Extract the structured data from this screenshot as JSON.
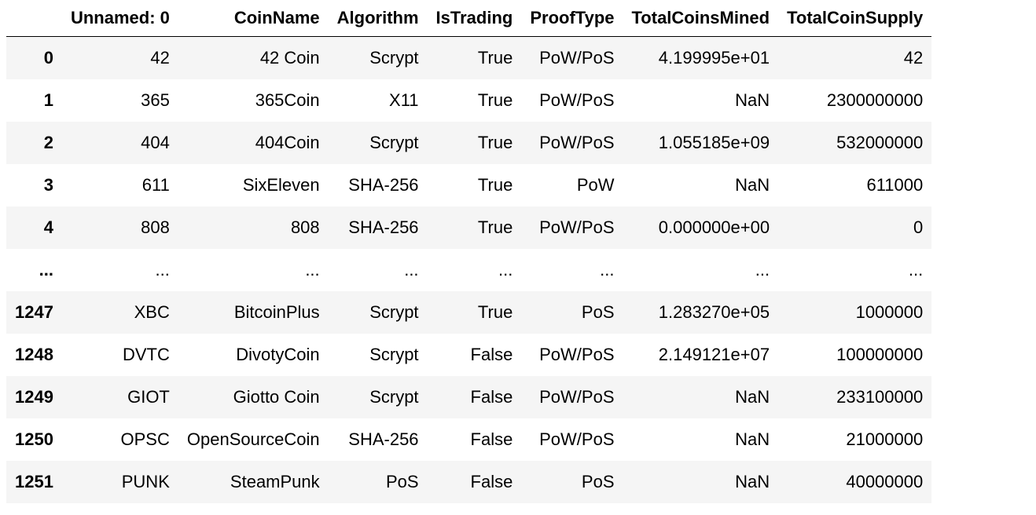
{
  "dataframe": {
    "columns": [
      "",
      "Unnamed: 0",
      "CoinName",
      "Algorithm",
      "IsTrading",
      "ProofType",
      "TotalCoinsMined",
      "TotalCoinSupply"
    ],
    "rows": [
      {
        "index": "0",
        "cells": [
          "42",
          "42 Coin",
          "Scrypt",
          "True",
          "PoW/PoS",
          "4.199995e+01",
          "42"
        ]
      },
      {
        "index": "1",
        "cells": [
          "365",
          "365Coin",
          "X11",
          "True",
          "PoW/PoS",
          "NaN",
          "2300000000"
        ]
      },
      {
        "index": "2",
        "cells": [
          "404",
          "404Coin",
          "Scrypt",
          "True",
          "PoW/PoS",
          "1.055185e+09",
          "532000000"
        ]
      },
      {
        "index": "3",
        "cells": [
          "611",
          "SixEleven",
          "SHA-256",
          "True",
          "PoW",
          "NaN",
          "611000"
        ]
      },
      {
        "index": "4",
        "cells": [
          "808",
          "808",
          "SHA-256",
          "True",
          "PoW/PoS",
          "0.000000e+00",
          "0"
        ]
      },
      {
        "index": "...",
        "cells": [
          "...",
          "...",
          "...",
          "...",
          "...",
          "...",
          "..."
        ]
      },
      {
        "index": "1247",
        "cells": [
          "XBC",
          "BitcoinPlus",
          "Scrypt",
          "True",
          "PoS",
          "1.283270e+05",
          "1000000"
        ]
      },
      {
        "index": "1248",
        "cells": [
          "DVTC",
          "DivotyCoin",
          "Scrypt",
          "False",
          "PoW/PoS",
          "2.149121e+07",
          "100000000"
        ]
      },
      {
        "index": "1249",
        "cells": [
          "GIOT",
          "Giotto Coin",
          "Scrypt",
          "False",
          "PoW/PoS",
          "NaN",
          "233100000"
        ]
      },
      {
        "index": "1250",
        "cells": [
          "OPSC",
          "OpenSourceCoin",
          "SHA-256",
          "False",
          "PoW/PoS",
          "NaN",
          "21000000"
        ]
      },
      {
        "index": "1251",
        "cells": [
          "PUNK",
          "SteamPunk",
          "PoS",
          "False",
          "PoS",
          "NaN",
          "40000000"
        ]
      }
    ]
  }
}
